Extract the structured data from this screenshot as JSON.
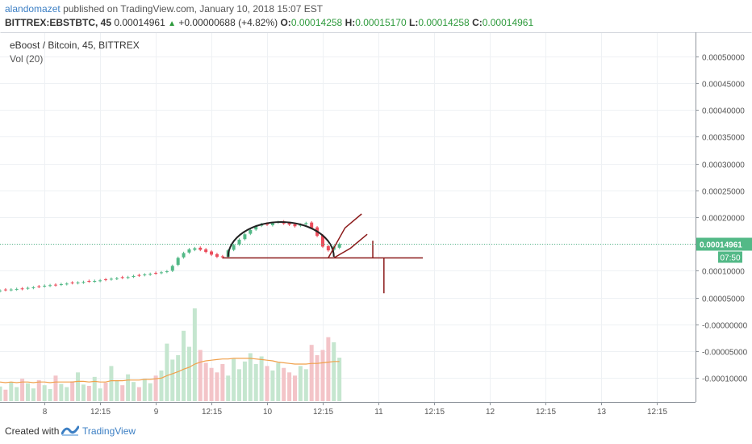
{
  "header": {
    "author": "alandomazet",
    "published_text": "published on TradingView.com, January 10, 2018 15:07 EST",
    "symbol": "BITTREX:EBSTBTC, 45",
    "last": "0.00014961",
    "change": "+0.00000688 (+4.82%)",
    "o_label": "O:",
    "o_value": "0.00014258",
    "h_label": "H:",
    "h_value": "0.00015170",
    "l_label": "L:",
    "l_value": "0.00014258",
    "c_label": "C:",
    "c_value": "0.00014961"
  },
  "legend": {
    "series_title": "eBoost / Bitcoin, 45, BITTREX",
    "volume_label": "Vol (20)"
  },
  "footer": {
    "created_with": "Created with",
    "brand": "TradingView"
  },
  "colors": {
    "up": "#53b987",
    "down": "#eb4d5c",
    "vol_up": "#c5e6cf",
    "vol_down": "#f3c4c8",
    "vol_ma": "#f0a04b",
    "drawing": "#8b1a1a",
    "arc": "#222222",
    "price_line": "#53b987",
    "grid": "#eef1f4"
  },
  "chart_data": {
    "type": "candlestick",
    "title": "eBoost / Bitcoin, 45, BITTREX",
    "last_price": 0.00014961,
    "last_price_label": "0.00014961",
    "countdown_label": "07:50",
    "y_range": [
      -0.000145,
      0.000545
    ],
    "y_ticks": [
      {
        "value": 0.0005,
        "label": "0.00050000"
      },
      {
        "value": 0.00045,
        "label": "0.00045000"
      },
      {
        "value": 0.0004,
        "label": "0.00040000"
      },
      {
        "value": 0.00035,
        "label": "0.00035000"
      },
      {
        "value": 0.0003,
        "label": "0.00030000"
      },
      {
        "value": 0.00025,
        "label": "0.00025000"
      },
      {
        "value": 0.0002,
        "label": "0.00020000"
      },
      {
        "value": 0.00015,
        "label": "0.00015000"
      },
      {
        "value": 0.0001,
        "label": "0.00010000"
      },
      {
        "value": 5e-05,
        "label": "0.00005000"
      },
      {
        "value": 0.0,
        "label": "-0.00000000"
      },
      {
        "value": -5e-05,
        "label": "-0.00005000"
      },
      {
        "value": -0.0001,
        "label": "-0.00010000"
      }
    ],
    "x_range": [
      0,
      125
    ],
    "x_ticks": [
      {
        "index": 8,
        "label": "8"
      },
      {
        "index": 18,
        "label": "12:15"
      },
      {
        "index": 28,
        "label": "9"
      },
      {
        "index": 38,
        "label": "12:15"
      },
      {
        "index": 48,
        "label": "10"
      },
      {
        "index": 58,
        "label": "12:15"
      },
      {
        "index": 68,
        "label": "11"
      },
      {
        "index": 78,
        "label": "12:15"
      },
      {
        "index": 88,
        "label": "12"
      },
      {
        "index": 98,
        "label": "12:15"
      },
      {
        "index": 108,
        "label": "13"
      },
      {
        "index": 118,
        "label": "12:15"
      }
    ],
    "candles": {
      "x_start": 0,
      "close": [
        6.3e-05,
        6.4e-05,
        6.5e-05,
        6.6e-05,
        6.6e-05,
        6.8e-05,
        6.9e-05,
        7e-05,
        7.2e-05,
        7.3e-05,
        7.3e-05,
        7.5e-05,
        7.6e-05,
        7.7e-05,
        7.8e-05,
        7.9e-05,
        8e-05,
        8.1e-05,
        8.2e-05,
        8.3e-05,
        8.5e-05,
        8.6e-05,
        8.7e-05,
        8.8e-05,
        9e-05,
        9.1e-05,
        9.3e-05,
        9.4e-05,
        9.5e-05,
        9.7e-05,
        9.9e-05,
        0.000109,
        0.000124,
        0.000133,
        0.00014,
        0.000142,
        0.000139,
        0.000135,
        0.00013,
        0.000126,
        0.000125,
        0.000138,
        0.000148,
        0.000158,
        0.000168,
        0.000176,
        0.000183,
        0.000187,
        0.000186,
        0.000189,
        0.000191,
        0.000188,
        0.000186,
        0.000183,
        0.000186,
        0.000189,
        0.00018,
        0.000165,
        0.000145,
        0.000138,
        0.000145,
        0.00015
      ],
      "open": [
        6.2e-05,
        6.5e-05,
        6.4e-05,
        6.5e-05,
        6.7e-05,
        6.7e-05,
        6.8e-05,
        7.1e-05,
        7.1e-05,
        7.2e-05,
        7.4e-05,
        7.4e-05,
        7.5e-05,
        7.8e-05,
        7.7e-05,
        7.8e-05,
        8.1e-05,
        8e-05,
        8.1e-05,
        8.4e-05,
        8.4e-05,
        8.5e-05,
        8.8e-05,
        8.7e-05,
        8.9e-05,
        9.2e-05,
        9.2e-05,
        9.3e-05,
        9.6e-05,
        9.6e-05,
        9.8e-05,
        0.0001,
        0.000111,
        0.000125,
        0.000134,
        0.000139,
        0.000143,
        0.00014,
        0.000136,
        0.000131,
        0.000127,
        0.000126,
        0.000139,
        0.000149,
        0.000159,
        0.000169,
        0.000177,
        0.000184,
        0.000188,
        0.000185,
        0.00019,
        0.000192,
        0.000189,
        0.000187,
        0.000184,
        0.000187,
        0.00019,
        0.000181,
        0.000166,
        0.000146,
        0.000139,
        0.000143
      ]
    },
    "volume": {
      "x_start": 0,
      "values": [
        0.23,
        0.18,
        0.3,
        0.22,
        0.35,
        0.28,
        0.2,
        0.33,
        0.25,
        0.19,
        0.4,
        0.27,
        0.22,
        0.31,
        0.45,
        0.26,
        0.24,
        0.38,
        0.2,
        0.29,
        0.55,
        0.33,
        0.25,
        0.42,
        0.3,
        0.22,
        0.35,
        0.28,
        0.4,
        0.48,
        0.9,
        0.65,
        0.72,
        1.1,
        0.85,
        1.45,
        0.8,
        0.6,
        0.52,
        0.45,
        0.58,
        0.4,
        0.66,
        0.5,
        0.62,
        0.75,
        0.58,
        0.7,
        0.55,
        0.48,
        0.6,
        0.52,
        0.45,
        0.4,
        0.55,
        0.5,
        0.88,
        0.72,
        0.8,
        1.0,
        0.92,
        0.68
      ],
      "ma20": [
        0.3,
        0.29,
        0.3,
        0.29,
        0.3,
        0.3,
        0.29,
        0.3,
        0.3,
        0.29,
        0.3,
        0.3,
        0.3,
        0.3,
        0.31,
        0.31,
        0.3,
        0.31,
        0.3,
        0.3,
        0.32,
        0.32,
        0.32,
        0.33,
        0.33,
        0.33,
        0.34,
        0.34,
        0.35,
        0.36,
        0.4,
        0.43,
        0.46,
        0.5,
        0.53,
        0.58,
        0.61,
        0.63,
        0.64,
        0.65,
        0.66,
        0.66,
        0.67,
        0.67,
        0.67,
        0.67,
        0.66,
        0.65,
        0.64,
        0.63,
        0.61,
        0.6,
        0.59,
        0.58,
        0.58,
        0.58,
        0.59,
        0.59,
        0.6,
        0.61,
        0.62,
        0.62
      ]
    },
    "drawings": {
      "arc": {
        "x_from": 41,
        "x_to": 60,
        "base_value": 0.000126,
        "peak_value": 0.000191
      },
      "support_line": {
        "x_from": 40,
        "x_to": 76,
        "value": 0.000124
      },
      "check_mark_1": {
        "points": [
          [
            59,
            0.000124
          ],
          [
            62,
            0.00018
          ],
          [
            65,
            0.000206
          ]
        ]
      },
      "check_mark_2": {
        "points": [
          [
            60,
            0.000124
          ],
          [
            63,
            0.000142
          ],
          [
            66,
            0.000168
          ]
        ]
      },
      "vertical_1": {
        "x": 67,
        "from": 0.000156,
        "to": 0.000124
      },
      "vertical_2": {
        "x": 69,
        "from": 0.000124,
        "to": 5.8e-05
      }
    }
  }
}
